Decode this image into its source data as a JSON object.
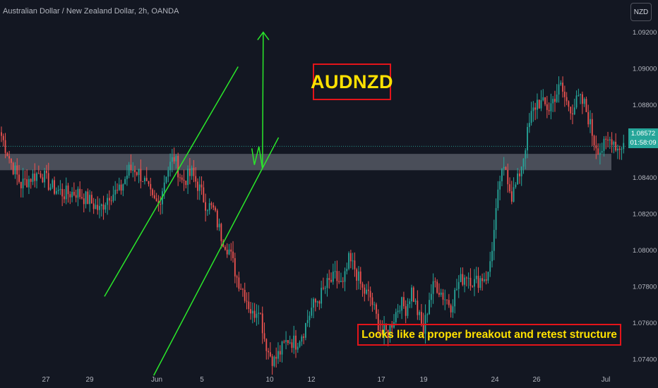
{
  "header": {
    "symbol_line": "Australian Dollar / New Zealand Dollar, 2h, OANDA",
    "currency_button": "NZD"
  },
  "annotations": {
    "title": "AUDNZD",
    "note": "Looks like a proper breakout and retest structure"
  },
  "current_price": {
    "price": "1.08572",
    "countdown": "01:58:09",
    "value": 1.08572
  },
  "colors": {
    "background": "#131722",
    "up": "#26a69a",
    "down": "#ef5350",
    "trendline": "#2ae82a",
    "box_border": "#e3141a",
    "annotation_text": "#ffe100",
    "zone": "#787b86"
  },
  "chart_data": {
    "type": "candlestick",
    "x_labels": [
      "27",
      "29",
      "Jun",
      "5",
      "10",
      "12",
      "17",
      "19",
      "24",
      "26",
      "Jul"
    ],
    "y_ticks": [
      1.092,
      1.09,
      1.088,
      1.086,
      1.084,
      1.082,
      1.08,
      1.078,
      1.076,
      1.074
    ],
    "ylim": [
      1.0728,
      1.0928
    ],
    "grid": false,
    "support_zone": [
      1.0844,
      1.0853
    ],
    "anchors": [
      [
        0,
        1.0863
      ],
      [
        5,
        1.0848
      ],
      [
        10,
        1.0836
      ],
      [
        15,
        1.084
      ],
      [
        20,
        1.0843
      ],
      [
        25,
        1.0835
      ],
      [
        32,
        1.0831
      ],
      [
        38,
        1.0832
      ],
      [
        45,
        1.0827
      ],
      [
        50,
        1.0822
      ],
      [
        55,
        1.0831
      ],
      [
        60,
        1.0832
      ],
      [
        65,
        1.0844
      ],
      [
        68,
        1.0845
      ],
      [
        72,
        1.084
      ],
      [
        77,
        1.0827
      ],
      [
        80,
        1.0825
      ],
      [
        84,
        1.0843
      ],
      [
        88,
        1.0851
      ],
      [
        92,
        1.0838
      ],
      [
        97,
        1.0842
      ],
      [
        100,
        1.0836
      ],
      [
        104,
        1.0826
      ],
      [
        108,
        1.0822
      ],
      [
        112,
        1.0808
      ],
      [
        116,
        1.08
      ],
      [
        120,
        1.0785
      ],
      [
        124,
        1.0776
      ],
      [
        128,
        1.0764
      ],
      [
        131,
        1.077
      ],
      [
        134,
        1.0752
      ],
      [
        136,
        1.0744
      ],
      [
        139,
        1.0739
      ],
      [
        142,
        1.0744
      ],
      [
        146,
        1.0751
      ],
      [
        150,
        1.0749
      ],
      [
        154,
        1.0756
      ],
      [
        158,
        1.0768
      ],
      [
        162,
        1.0774
      ],
      [
        166,
        1.0781
      ],
      [
        170,
        1.0785
      ],
      [
        174,
        1.078
      ],
      [
        177,
        1.0794
      ],
      [
        180,
        1.079
      ],
      [
        184,
        1.0778
      ],
      [
        188,
        1.0774
      ],
      [
        191,
        1.0763
      ],
      [
        194,
        1.0754
      ],
      [
        197,
        1.0755
      ],
      [
        200,
        1.0763
      ],
      [
        203,
        1.0771
      ],
      [
        206,
        1.0768
      ],
      [
        209,
        1.0778
      ],
      [
        212,
        1.0766
      ],
      [
        215,
        1.0755
      ],
      [
        218,
        1.0774
      ],
      [
        221,
        1.0782
      ],
      [
        225,
        1.0775
      ],
      [
        229,
        1.077
      ],
      [
        233,
        1.0782
      ],
      [
        237,
        1.0787
      ],
      [
        241,
        1.0782
      ],
      [
        245,
        1.0785
      ],
      [
        248,
        1.0786
      ],
      [
        251,
        1.081
      ],
      [
        254,
        1.0839
      ],
      [
        257,
        1.0845
      ],
      [
        260,
        1.083
      ],
      [
        263,
        1.0838
      ],
      [
        266,
        1.0852
      ],
      [
        268,
        1.0864
      ],
      [
        270,
        1.0874
      ],
      [
        273,
        1.0882
      ],
      [
        276,
        1.088
      ],
      [
        279,
        1.0878
      ],
      [
        282,
        1.0885
      ],
      [
        285,
        1.089
      ],
      [
        288,
        1.0881
      ],
      [
        291,
        1.0878
      ],
      [
        294,
        1.0883
      ],
      [
        297,
        1.088
      ],
      [
        299,
        1.0873
      ],
      [
        302,
        1.086
      ],
      [
        305,
        1.0855
      ],
      [
        308,
        1.0858
      ],
      [
        311,
        1.0862
      ],
      [
        314,
        1.0856
      ],
      [
        317,
        1.0859
      ]
    ],
    "trendlines": [
      {
        "name": "channel-upper",
        "from": [
          52.5,
          1.07745
        ],
        "to": [
          120.6,
          1.0901
        ]
      },
      {
        "name": "channel-lower",
        "from": [
          77.6,
          1.0731
        ],
        "to": [
          141.2,
          1.0862
        ]
      },
      {
        "name": "projection-zigzag",
        "points": [
          [
            127.6,
            1.0856
          ],
          [
            128.9,
            1.0847
          ],
          [
            131.2,
            1.0857
          ],
          [
            133.0,
            1.0845
          ]
        ]
      },
      {
        "name": "projection-arrow",
        "from": [
          133.0,
          1.0845
        ],
        "to": [
          133.4,
          1.092
        ]
      }
    ]
  }
}
